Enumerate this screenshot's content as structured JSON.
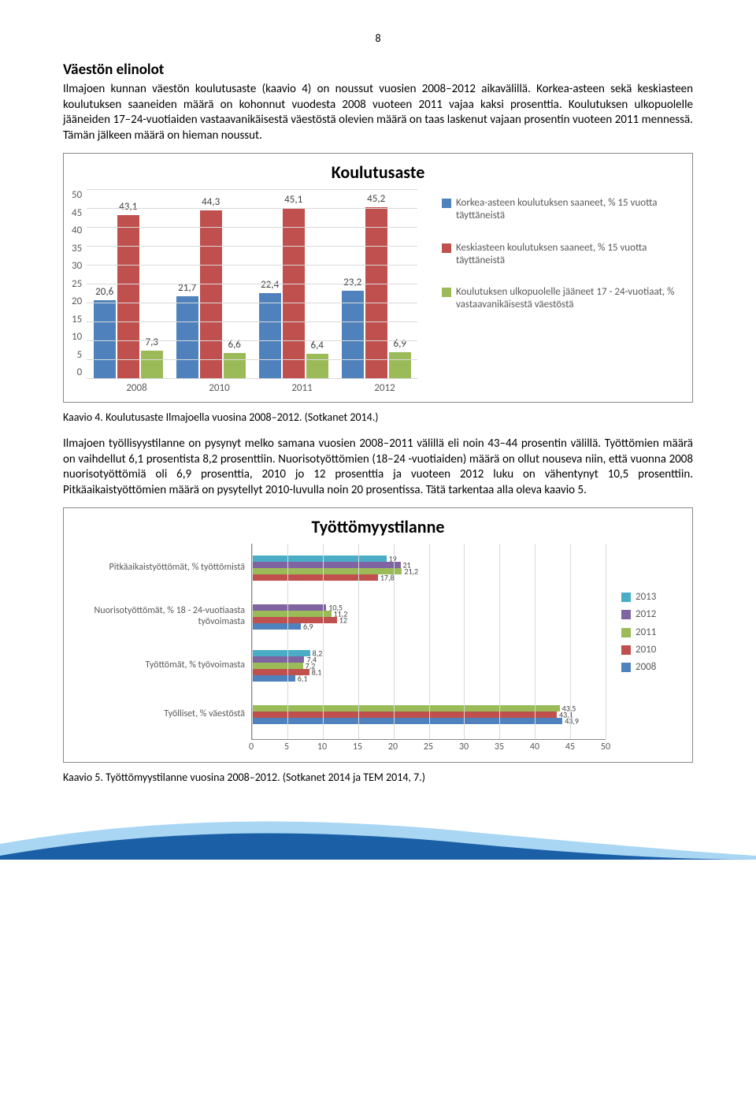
{
  "page_number": "8",
  "section_title": "Väestön elinolot",
  "para1": "Ilmajoen kunnan väestön koulutusaste (kaavio 4) on noussut vuosien 2008–2012 aikavälillä. Korkea-asteen sekä keskiasteen koulutuksen saaneiden määrä on kohonnut vuodesta 2008 vuoteen 2011 vajaa kaksi prosenttia. Koulutuksen ulkopuolelle jääneiden 17–24-vuotiaiden vastaavanikäisestä väestöstä olevien määrä on taas laskenut vajaan prosentin vuoteen 2011 mennessä. Tämän jälkeen määrä on hieman noussut.",
  "chart1": {
    "title": "Koulutusaste",
    "ymax": 50,
    "yticks": [
      "50",
      "45",
      "40",
      "35",
      "30",
      "25",
      "20",
      "15",
      "10",
      "5",
      "0"
    ],
    "categories": [
      "2008",
      "2010",
      "2011",
      "2012"
    ],
    "series": [
      {
        "name": "Korkea-asteen koulutuksen saaneet, % 15 vuotta täyttäneistä",
        "color": "#4f81bd",
        "values": [
          20.6,
          21.7,
          22.4,
          23.2
        ]
      },
      {
        "name": "Keskiasteen koulutuksen saaneet, % 15 vuotta täyttäneistä",
        "color": "#c0504d",
        "values": [
          43.1,
          44.3,
          45.1,
          45.2
        ]
      },
      {
        "name": "Koulutuksen ulkopuolelle jääneet 17 - 24-vuotiaat, % vastaavanikäisestä väestöstä",
        "color": "#9bbb59",
        "values": [
          7.3,
          6.6,
          6.4,
          6.9
        ]
      }
    ]
  },
  "caption1": "Kaavio 4. Koulutusaste Ilmajoella vuosina 2008–2012. (Sotkanet 2014.)",
  "para2": "Ilmajoen työllisyystilanne on pysynyt melko samana vuosien 2008–2011 välillä eli noin 43–44 prosentin välillä. Työttömien määrä on vaihdellut 6,1 prosentista 8,2 prosenttiin. Nuorisotyöttömien (18–24 -vuotiaiden) määrä on ollut nouseva niin, että vuonna 2008 nuorisotyöttömiä oli 6,9 prosenttia, 2010 jo 12 prosenttia ja vuoteen 2012 luku on vähentynyt 10,5 prosenttiin. Pitkäaikaistyöttömien määrä on pysytellyt 2010-luvulla noin 20 prosentissa. Tätä tarkentaa alla oleva kaavio 5.",
  "chart2": {
    "title": "Työttömyystilanne",
    "xmax": 50,
    "xticks": [
      "0",
      "5",
      "10",
      "15",
      "20",
      "25",
      "30",
      "35",
      "40",
      "45",
      "50"
    ],
    "categories": [
      "Pitkäaikaistyöttömät, % työttömistä",
      "Nuorisotyöttömät, % 18 - 24-vuotiaasta työvoimasta",
      "Työttömät, % työvoimasta",
      "Työlliset, % väestöstä"
    ],
    "years": [
      {
        "label": "2013",
        "color": "#4bacc6"
      },
      {
        "label": "2012",
        "color": "#8064a2"
      },
      {
        "label": "2011",
        "color": "#9bbb59"
      },
      {
        "label": "2010",
        "color": "#c0504d"
      },
      {
        "label": "2008",
        "color": "#4f81bd"
      }
    ],
    "values": [
      [
        19,
        21,
        21.2,
        17.8,
        null
      ],
      [
        null,
        10.5,
        11.2,
        12,
        6.9
      ],
      [
        8.2,
        7.4,
        7.2,
        8.1,
        6.1
      ],
      [
        null,
        null,
        43.5,
        43.1,
        43.9
      ]
    ]
  },
  "caption2": "Kaavio 5. Työttömyystilanne vuosina 2008–2012. (Sotkanet 2014 ja TEM 2014, 7.)",
  "footer_colors": {
    "light": "#a9d6f2",
    "dark": "#1b5fa6"
  },
  "grid_color": "#d9d9d9",
  "axis_color": "#888"
}
